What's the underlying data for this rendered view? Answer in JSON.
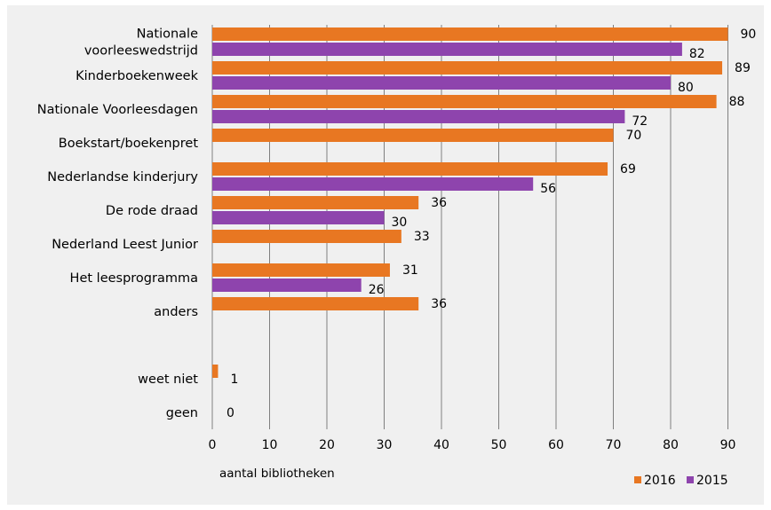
{
  "chart_data": {
    "type": "bar",
    "orientation": "horizontal",
    "categories": [
      [
        "Nationale",
        "voorleeswedstrijd"
      ],
      [
        "Kinderboekenweek"
      ],
      [
        "Nationale Voorleesdagen"
      ],
      [
        "Boekstart/boekenpret"
      ],
      [
        "Nederlandse kinderjury"
      ],
      [
        "De rode draad"
      ],
      [
        "Nederland Leest Junior"
      ],
      [
        "Het leesprogramma"
      ],
      [
        "anders"
      ],
      [],
      [
        "weet niet"
      ],
      [
        "geen"
      ]
    ],
    "series": [
      {
        "name": "2016",
        "color": "#e87722",
        "values": [
          90,
          89,
          88,
          70,
          69,
          36,
          33,
          31,
          36,
          null,
          1,
          0
        ]
      },
      {
        "name": "2015",
        "color": "#8e44ad",
        "values": [
          82,
          80,
          72,
          null,
          56,
          30,
          null,
          26,
          null,
          null,
          null,
          null
        ]
      }
    ],
    "xlabel": "aantal bibliotheken",
    "xlim": [
      0,
      90
    ],
    "xticks": [
      "0",
      "10",
      "20",
      "30",
      "40",
      "50",
      "60",
      "70",
      "80",
      "90"
    ],
    "grid": "vertical",
    "legend": "bottom-right"
  }
}
